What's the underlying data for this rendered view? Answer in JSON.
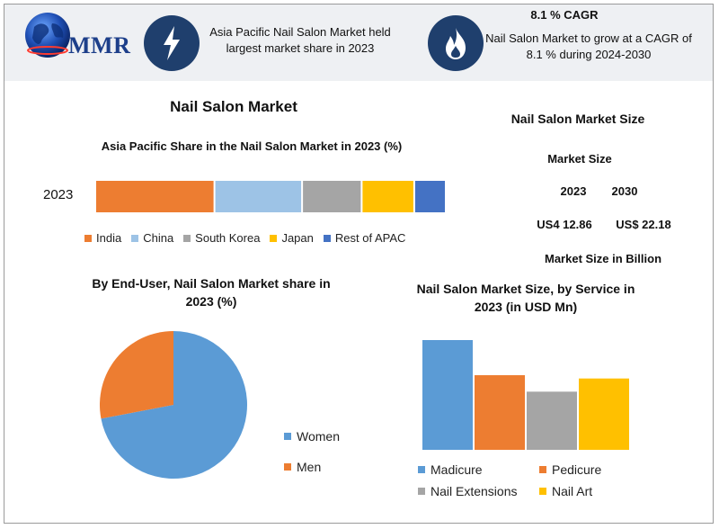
{
  "header": {
    "logo_text": "MMR",
    "highlight_1": "Asia Pacific Nail Salon Market held largest market share in 2023",
    "highlight_2_title": "8.1 % CAGR",
    "highlight_2_text": "Nail Salon Market to grow at a CAGR of 8.1 % during 2024-2030",
    "icons": [
      "globe-icon",
      "lightning-icon",
      "flame-icon"
    ]
  },
  "main_title": "Nail Salon Market",
  "market_size": {
    "title": "Nail Salon Market Size",
    "subtitle": "Market Size",
    "year_1": "2023",
    "year_2": "2030",
    "value_1": "US4 12.86",
    "value_2": "US$ 22.18",
    "unit": "Market Size in Billion"
  },
  "chart_data": [
    {
      "type": "bar",
      "orientation": "horizontal-stacked",
      "title": "Asia Pacific Share in the Nail Salon Market in 2023 (%)",
      "categories": [
        "2023"
      ],
      "series": [
        {
          "name": "India",
          "values": [
            34
          ],
          "color": "#ed7d31"
        },
        {
          "name": "China",
          "values": [
            25
          ],
          "color": "#9dc3e6"
        },
        {
          "name": "South Korea",
          "values": [
            17
          ],
          "color": "#a5a5a5"
        },
        {
          "name": "Japan",
          "values": [
            15
          ],
          "color": "#ffc000"
        },
        {
          "name": "Rest of APAC",
          "values": [
            9
          ],
          "color": "#4472c4"
        }
      ],
      "legend": "bottom"
    },
    {
      "type": "pie",
      "title": "By End-User, Nail Salon Market share in 2023 (%)",
      "series": [
        {
          "name": "Women",
          "values": [
            72
          ],
          "color": "#5b9bd5"
        },
        {
          "name": "Men",
          "values": [
            28
          ],
          "color": "#ed7d31"
        }
      ],
      "legend": "right"
    },
    {
      "type": "bar",
      "title": "Nail Salon Market Size, by Service in 2023 (in USD Mn)",
      "series": [
        {
          "name": "Madicure",
          "values": [
            100
          ],
          "color": "#5b9bd5"
        },
        {
          "name": "Pedicure",
          "values": [
            68
          ],
          "color": "#ed7d31"
        },
        {
          "name": "Nail Extensions",
          "values": [
            53
          ],
          "color": "#a5a5a5"
        },
        {
          "name": "Nail Art",
          "values": [
            65
          ],
          "color": "#ffc000"
        }
      ],
      "ylim": [
        0,
        100
      ],
      "legend": "bottom"
    }
  ]
}
